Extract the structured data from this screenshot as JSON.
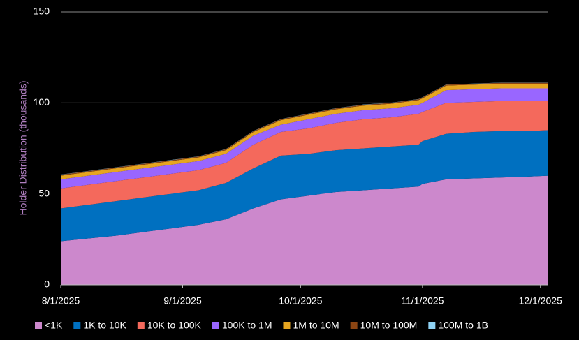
{
  "chart_data": {
    "type": "stacked-area",
    "y_label": "Holder Distribution (thousands)",
    "x": [
      "2025-08-01",
      "2025-08-08",
      "2025-08-15",
      "2025-08-22",
      "2025-08-29",
      "2025-09-05",
      "2025-09-12",
      "2025-09-19",
      "2025-09-26",
      "2025-10-03",
      "2025-10-10",
      "2025-10-17",
      "2025-10-24",
      "2025-10-31",
      "2025-11-01",
      "2025-11-07",
      "2025-11-14",
      "2025-11-21",
      "2025-11-28",
      "2025-12-03"
    ],
    "xlim": [
      "2025-08-01",
      "2025-12-03"
    ],
    "xticks": [
      {
        "value": "2025-08-01",
        "label": "8/1/2025"
      },
      {
        "value": "2025-09-01",
        "label": "9/1/2025"
      },
      {
        "value": "2025-10-01",
        "label": "10/1/2025"
      },
      {
        "value": "2025-11-01",
        "label": "11/1/2025"
      },
      {
        "value": "2025-12-01",
        "label": "12/1/2025"
      }
    ],
    "ylim": [
      0,
      150
    ],
    "yticks": [
      0,
      50,
      100,
      150
    ],
    "grid": true,
    "legend": "bottom",
    "series": [
      {
        "name": "<1K",
        "color": "#cc88cc",
        "values": [
          24,
          25.5,
          27,
          29,
          31,
          33,
          36,
          42,
          47,
          49,
          51,
          52,
          53,
          54,
          55.5,
          58,
          58.5,
          59,
          59.5,
          60
        ]
      },
      {
        "name": "1K to 10K",
        "color": "#0070c0",
        "values": [
          18,
          18.5,
          19,
          19,
          19,
          19,
          20,
          22,
          24,
          23,
          23,
          23,
          23,
          23,
          23.5,
          25,
          25.5,
          25.5,
          25,
          25
        ]
      },
      {
        "name": "10K to 100K",
        "color": "#f4695c",
        "values": [
          11,
          11,
          11,
          11,
          11,
          11,
          11,
          13,
          13,
          14,
          15,
          16,
          16,
          17,
          16,
          17,
          16.5,
          16.5,
          16.5,
          16
        ]
      },
      {
        "name": "100K to 1M",
        "color": "#9966ff",
        "values": [
          5,
          5,
          5,
          5,
          5,
          5,
          5,
          5,
          4,
          5,
          5,
          5,
          5,
          5,
          5,
          7,
          7,
          7,
          7,
          7
        ]
      },
      {
        "name": "1M to 10M",
        "color": "#e6a520",
        "values": [
          2,
          2,
          2,
          2,
          2,
          2,
          2,
          2,
          2.5,
          2.5,
          2.5,
          2.5,
          2.5,
          2.5,
          2.5,
          2.5,
          2.5,
          2.5,
          2.5,
          2.5
        ]
      },
      {
        "name": "10M to 100M",
        "color": "#8b4513",
        "values": [
          0.5,
          0.5,
          0.5,
          0.5,
          0.5,
          0.5,
          0.5,
          0.5,
          0.5,
          0.5,
          0.5,
          0.5,
          0.5,
          0.5,
          0.5,
          0.5,
          0.5,
          0.5,
          0.5,
          0.5
        ]
      },
      {
        "name": "100M to 1B",
        "color": "#8fd3f5",
        "values": [
          0.1,
          0.1,
          0.1,
          0.1,
          0.1,
          0.1,
          0.1,
          0.1,
          0.1,
          0.1,
          0.1,
          0.1,
          0.1,
          0.1,
          0.1,
          0.1,
          0.1,
          0.1,
          0.1,
          0.1
        ]
      }
    ]
  }
}
